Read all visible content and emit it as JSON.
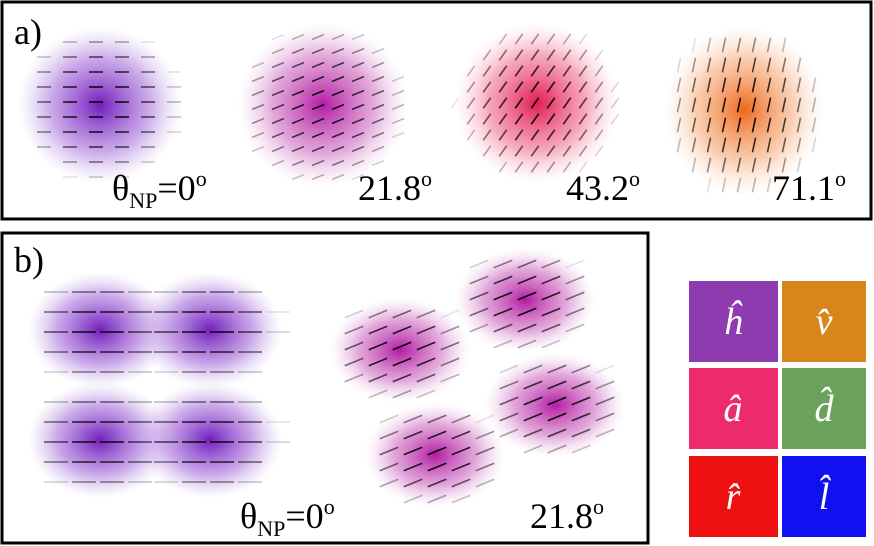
{
  "panel_a": {
    "label": "a)",
    "angles": [
      {
        "symbol": "θ",
        "subscript": "NP",
        "value": "=0",
        "superscript": "o"
      },
      {
        "value": "21.8",
        "superscript": "o"
      },
      {
        "value": "43.2",
        "superscript": "o"
      },
      {
        "value": "71.1",
        "superscript": "o"
      }
    ]
  },
  "panel_b": {
    "label": "b)",
    "angles": [
      {
        "symbol": "θ",
        "subscript": "NP",
        "value": "=0",
        "superscript": "o"
      },
      {
        "value": "21.8",
        "superscript": "o"
      }
    ]
  },
  "legend": {
    "items": [
      "ĥ",
      "v̂",
      "â",
      "d̂",
      "r̂",
      "l̂"
    ]
  }
}
